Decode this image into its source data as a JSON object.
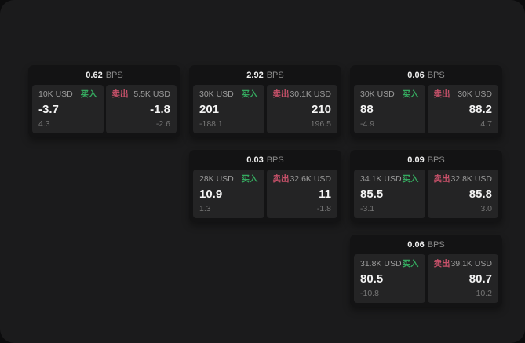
{
  "colors": {
    "buy": "#35a95f",
    "sell": "#c8516a",
    "background": "#0c0c0d",
    "surface": "#1b1b1c",
    "card": "#131314",
    "tile": "#242425"
  },
  "cards": [
    {
      "bps": "0.62",
      "bps_unit": "BPS",
      "buy": {
        "amount": "10K USD",
        "side_label": "买入",
        "price": "-3.7",
        "delta": "4.3"
      },
      "sell": {
        "side_label": "卖出",
        "amount": "5.5K USD",
        "price": "-1.8",
        "delta": "-2.6"
      }
    },
    {
      "bps": "2.92",
      "bps_unit": "BPS",
      "buy": {
        "amount": "30K USD",
        "side_label": "买入",
        "price": "201",
        "delta": "-188.1"
      },
      "sell": {
        "side_label": "卖出",
        "amount": "30.1K USD",
        "price": "210",
        "delta": "196.5"
      }
    },
    {
      "bps": "0.06",
      "bps_unit": "BPS",
      "buy": {
        "amount": "30K USD",
        "side_label": "买入",
        "price": "88",
        "delta": "-4.9"
      },
      "sell": {
        "side_label": "卖出",
        "amount": "30K USD",
        "price": "88.2",
        "delta": "4.7"
      }
    },
    {
      "bps": "0.03",
      "bps_unit": "BPS",
      "buy": {
        "amount": "28K USD",
        "side_label": "买入",
        "price": "10.9",
        "delta": "1.3"
      },
      "sell": {
        "side_label": "卖出",
        "amount": "32.6K USD",
        "price": "11",
        "delta": "-1.8"
      }
    },
    {
      "bps": "0.09",
      "bps_unit": "BPS",
      "buy": {
        "amount": "34.1K USD",
        "side_label": "买入",
        "price": "85.5",
        "delta": "-3.1"
      },
      "sell": {
        "side_label": "卖出",
        "amount": "32.8K USD",
        "price": "85.8",
        "delta": "3.0"
      }
    },
    {
      "bps": "0.06",
      "bps_unit": "BPS",
      "buy": {
        "amount": "31.8K USD",
        "side_label": "买入",
        "price": "80.5",
        "delta": "-10.8"
      },
      "sell": {
        "side_label": "卖出",
        "amount": "39.1K USD",
        "price": "80.7",
        "delta": "10.2"
      }
    }
  ]
}
